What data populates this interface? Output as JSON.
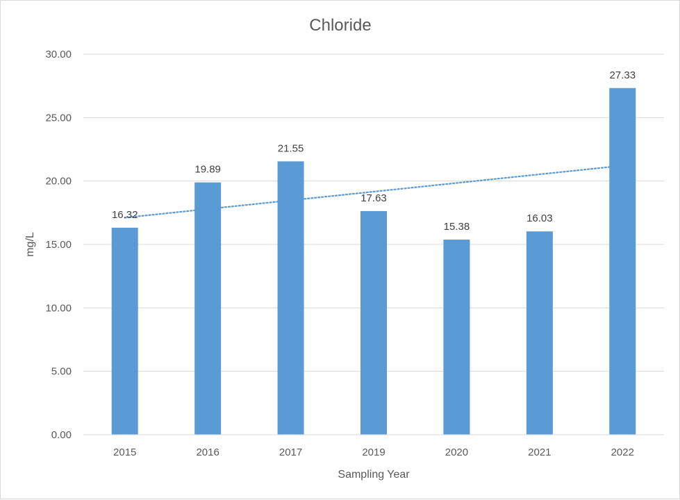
{
  "chart_data": {
    "type": "bar",
    "title": "Chloride",
    "xlabel": "Sampling Year",
    "ylabel": "mg/L",
    "categories": [
      "2015",
      "2016",
      "2017",
      "2019",
      "2020",
      "2021",
      "2022"
    ],
    "values": [
      16.32,
      19.89,
      21.55,
      17.63,
      15.38,
      16.03,
      27.33
    ],
    "data_labels": [
      "16.32",
      "19.89",
      "21.55",
      "17.63",
      "15.38",
      "16.03",
      "27.33"
    ],
    "ylim": [
      0,
      30
    ],
    "yticks": [
      "0.00",
      "5.00",
      "10.00",
      "15.00",
      "20.00",
      "25.00",
      "30.00"
    ],
    "grid": true,
    "legend": "none",
    "trendline": {
      "type": "linear",
      "style": "dotted"
    },
    "colors": {
      "bar": "#5b9bd5",
      "trendline": "#5b9bd5",
      "grid": "#d9d9d9"
    }
  }
}
